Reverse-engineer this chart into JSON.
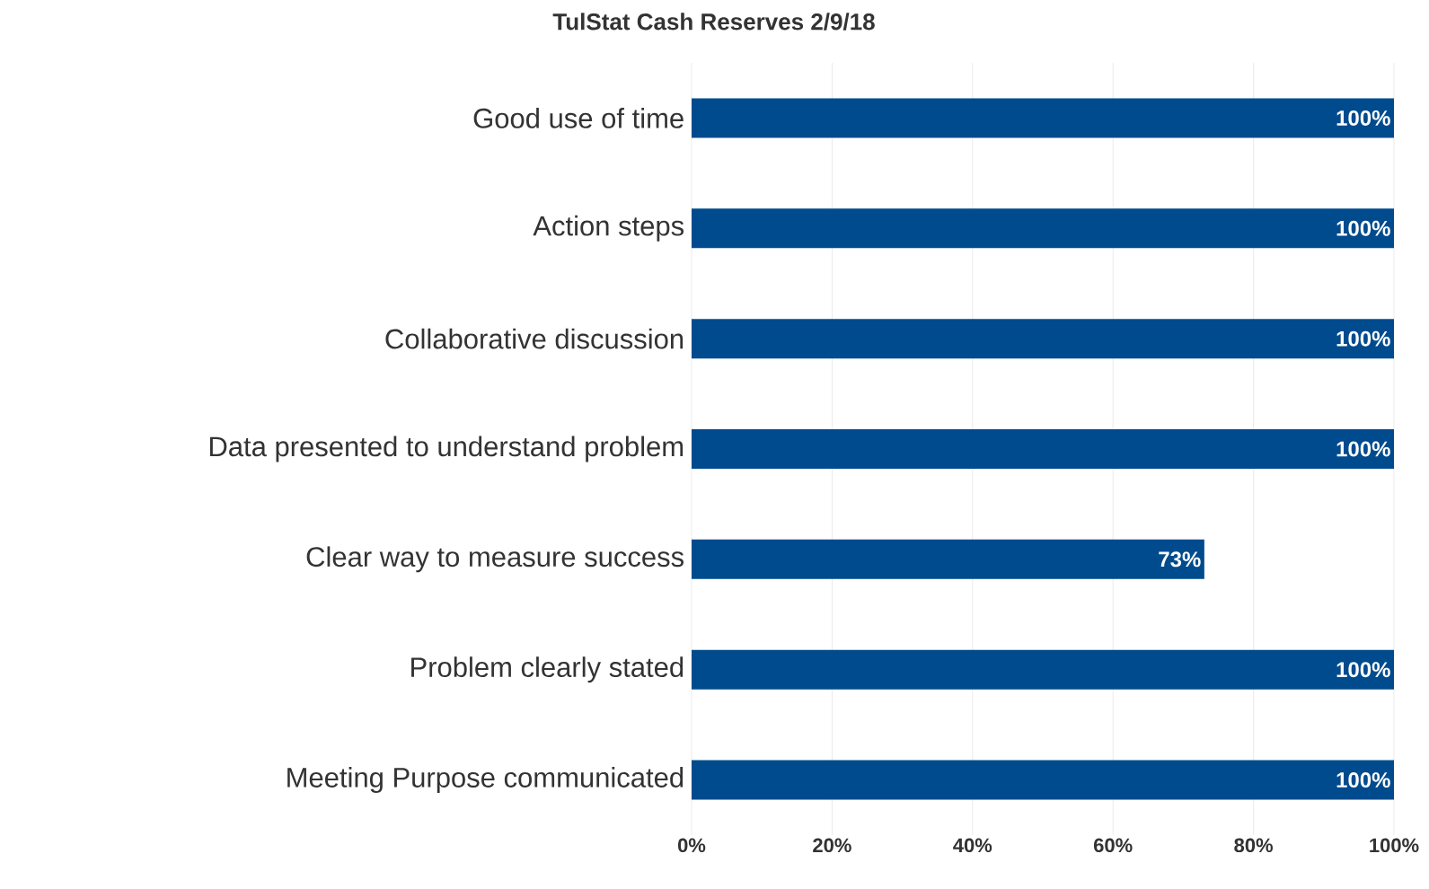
{
  "chart_data": {
    "type": "bar",
    "orientation": "horizontal",
    "title": "TulStat Cash Reserves 2/9/18",
    "categories": [
      "Good use of time",
      "Action steps",
      "Collaborative discussion",
      "Data presented to understand problem",
      "Clear way to measure success",
      "Problem clearly stated",
      "Meeting Purpose communicated"
    ],
    "values": [
      100,
      100,
      100,
      100,
      73,
      100,
      100
    ],
    "value_labels": [
      "100%",
      "100%",
      "100%",
      "100%",
      "73%",
      "100%",
      "100%"
    ],
    "color": "#004b8d",
    "xlim": [
      0,
      100
    ],
    "xticks": [
      {
        "value": 0,
        "label": "0%"
      },
      {
        "value": 20,
        "label": "20%"
      },
      {
        "value": 40,
        "label": "40%"
      },
      {
        "value": 60,
        "label": "60%"
      },
      {
        "value": 80,
        "label": "80%"
      },
      {
        "value": 100,
        "label": "100%"
      }
    ],
    "grid": "x"
  }
}
